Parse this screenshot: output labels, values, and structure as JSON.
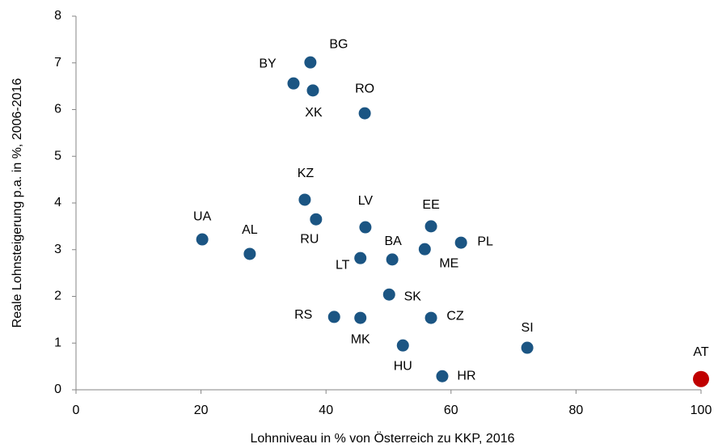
{
  "chart_data": {
    "type": "scatter",
    "xlabel": "Lohnniveau in % von Österreich zu KKP, 2016",
    "ylabel": "Reale Lohnsteigerung p.a. in %,   2006-2016",
    "labels": [
      "BG",
      "BY",
      "XK",
      "RO",
      "KZ",
      "RU",
      "LV",
      "EE",
      "PL",
      "UA",
      "AL",
      "ME",
      "LT",
      "BA",
      "SK",
      "RS",
      "MK",
      "CZ",
      "SI",
      "HU",
      "HR",
      "AT"
    ],
    "x": [
      37.5,
      34.8,
      37.9,
      46.2,
      36.6,
      38.4,
      46.3,
      56.8,
      61.6,
      20.2,
      27.8,
      55.8,
      45.5,
      50.6,
      50.1,
      41.3,
      45.5,
      56.8,
      72.2,
      52.3,
      58.6,
      100
    ],
    "y": [
      7.01,
      6.56,
      6.41,
      5.92,
      4.07,
      3.65,
      3.48,
      3.5,
      3.15,
      3.22,
      2.91,
      3.01,
      2.82,
      2.79,
      2.04,
      1.56,
      1.54,
      1.54,
      0.9,
      0.95,
      0.29,
      0.23
    ],
    "point_colors": [
      "#1b5583",
      "#1b5583",
      "#1b5583",
      "#1b5583",
      "#1b5583",
      "#1b5583",
      "#1b5583",
      "#1b5583",
      "#1b5583",
      "#1b5583",
      "#1b5583",
      "#1b5583",
      "#1b5583",
      "#1b5583",
      "#1b5583",
      "#1b5583",
      "#1b5583",
      "#1b5583",
      "#1b5583",
      "#1b5583",
      "#1b5583",
      "#c00000"
    ],
    "xlim": [
      0,
      100
    ],
    "xticks": [
      0,
      20,
      40,
      60,
      80,
      100
    ],
    "ylim": [
      0,
      8
    ],
    "yticks": [
      0,
      1,
      2,
      3,
      4,
      5,
      6,
      7,
      8
    ]
  }
}
